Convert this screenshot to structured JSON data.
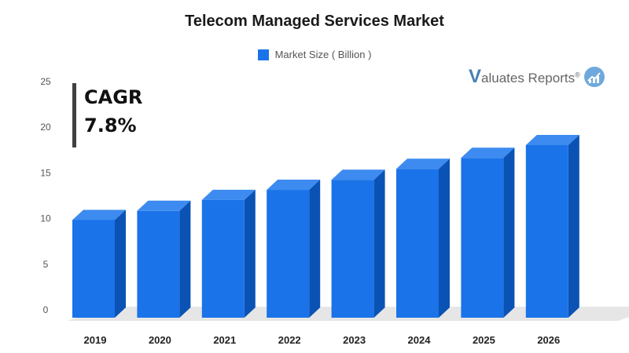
{
  "chart_data": {
    "type": "bar",
    "title": "Telecom Managed Services Market",
    "categories": [
      "2019",
      "2020",
      "2021",
      "2022",
      "2023",
      "2024",
      "2025",
      "2026"
    ],
    "series": [
      {
        "name": "Market Size ( Billion )",
        "values": [
          10.7,
          11.7,
          12.9,
          14.0,
          15.1,
          16.3,
          17.5,
          18.9
        ]
      }
    ],
    "ylim": [
      0,
      25
    ],
    "yticks": [
      "0",
      "5",
      "10",
      "15",
      "20",
      "25"
    ],
    "legend_position": "top-center",
    "grid": false,
    "bar_color": "#1a73e8",
    "bar_side_color": "#0b52b5",
    "bar_top_color": "#3d8bf0"
  },
  "annotation": {
    "cagr_label": "CAGR",
    "cagr_value": "7.8%"
  },
  "logo": {
    "letter": "V",
    "text": "aluates Reports",
    "registered": "®",
    "icon": "chart-bubble-icon"
  }
}
